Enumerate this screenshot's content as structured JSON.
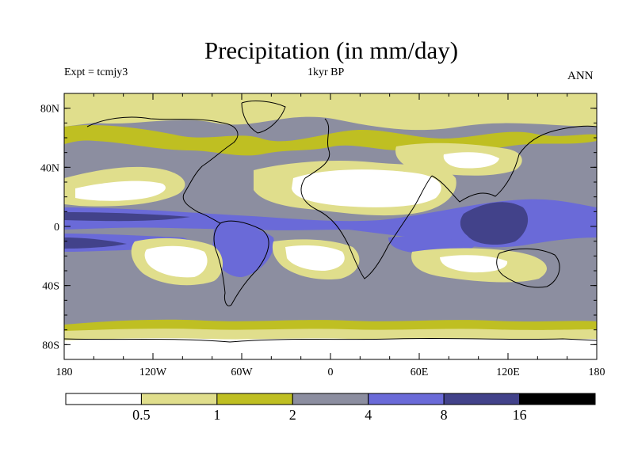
{
  "title": "Precipitation (in mm/day)",
  "left_label": "Expt = tcmjy3",
  "center_label": "1kyr BP",
  "right_label": "ANN",
  "map": {
    "projection": "cylindrical-equidistant",
    "lon_range": [
      -180,
      180
    ],
    "lat_range": [
      -90,
      90
    ],
    "lat_ticks": [
      {
        "value": 80,
        "label": "80N"
      },
      {
        "value": 40,
        "label": "40N"
      },
      {
        "value": 0,
        "label": "0"
      },
      {
        "value": -40,
        "label": "40S"
      },
      {
        "value": -80,
        "label": "80S"
      }
    ],
    "lon_ticks": [
      {
        "value": -180,
        "label": "180"
      },
      {
        "value": -120,
        "label": "120W"
      },
      {
        "value": -60,
        "label": "60W"
      },
      {
        "value": 0,
        "label": "0"
      },
      {
        "value": 60,
        "label": "60E"
      },
      {
        "value": 120,
        "label": "120E"
      },
      {
        "value": 180,
        "label": "180"
      }
    ],
    "background_color": "#8c8ea0",
    "coastline_color": "#000000"
  },
  "colorbar": {
    "colors": [
      "#ffffff",
      "#e0de8c",
      "#bfbf22",
      "#8c8ea0",
      "#6a6ad8",
      "#42428a",
      "#000000"
    ],
    "labels": [
      "0.5",
      "1",
      "2",
      "4",
      "8",
      "16"
    ]
  }
}
